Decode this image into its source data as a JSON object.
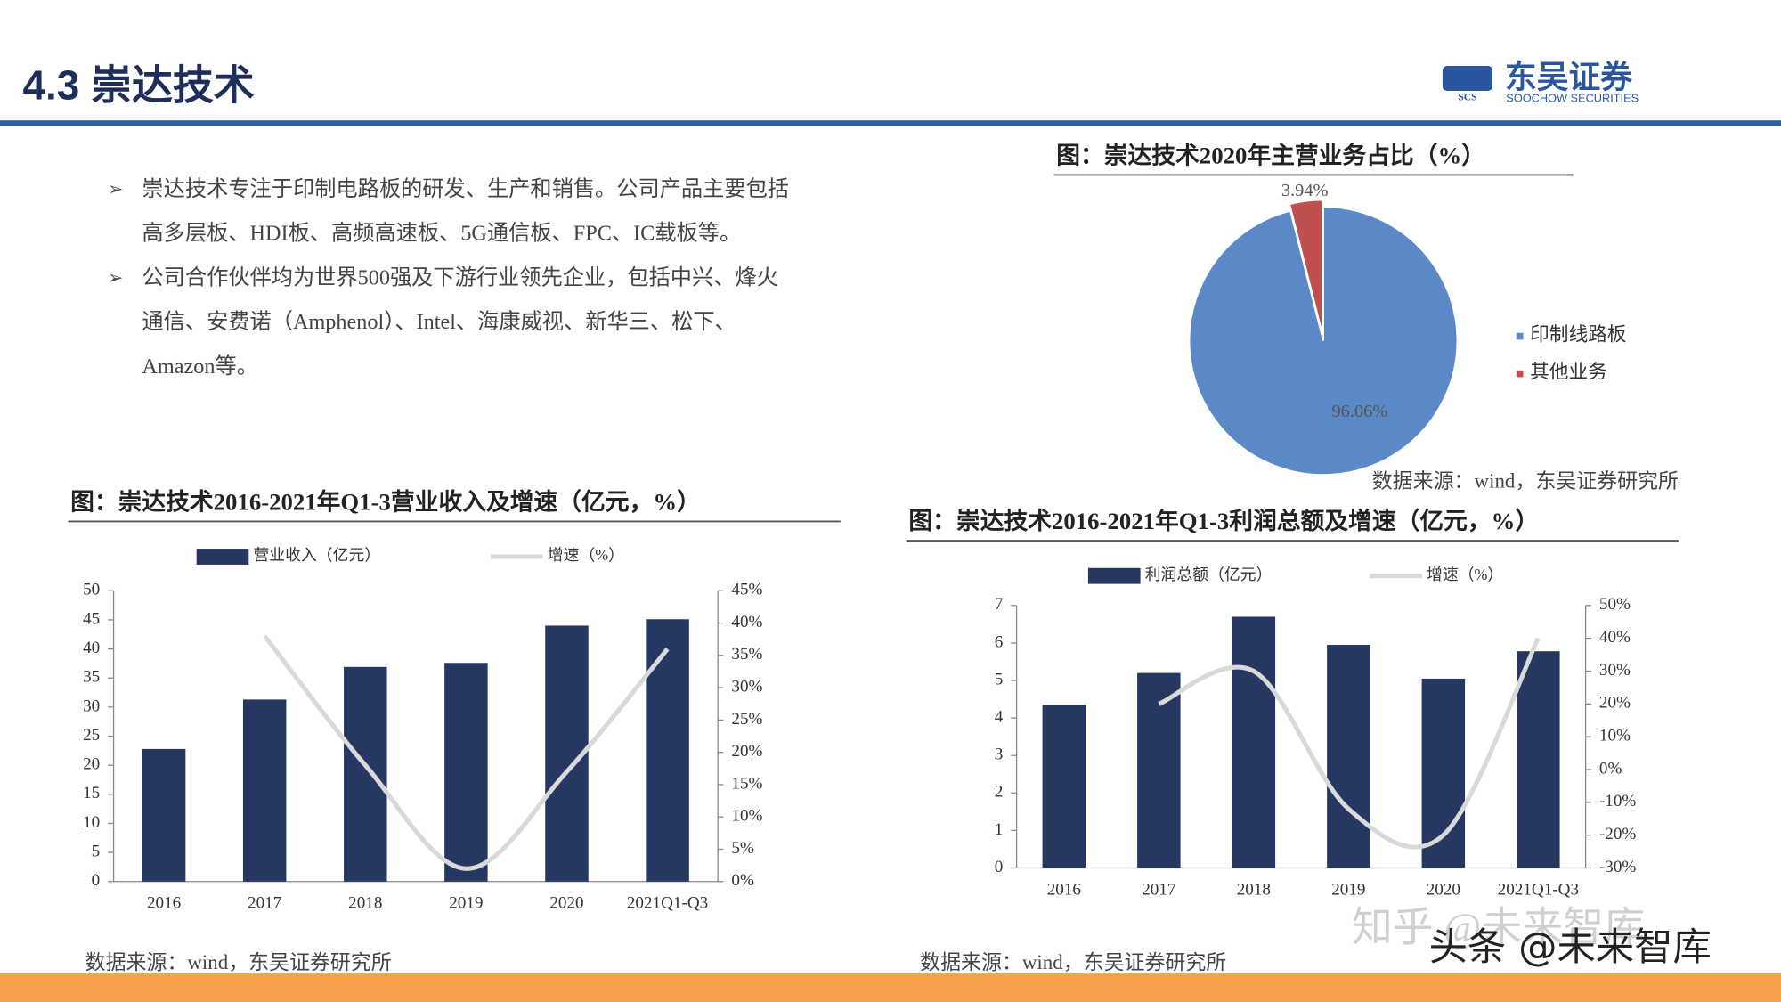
{
  "header": {
    "title": "4.3 崇达技术",
    "logo": "东吴证券",
    "logo_sub": "SOOCHOW SECURITIES",
    "logo_mark": "SCS"
  },
  "bullets": [
    [
      "崇达技术专注于印制电路板的研发、生产和销售。公司产品主要包括",
      "高多层板、HDI板、高频高速板、5G通信板、FPC、IC载板等。"
    ],
    [
      "公司合作伙伴均为世界500强及下游行业领先企业，包括中兴、烽火",
      "通信、安费诺（Amphenol）、Intel、海康威视、新华三、松下、",
      "Amazon等。"
    ]
  ],
  "watermarks": [
    "知乎 @未来智库",
    "头条 @未来智库"
  ],
  "chart_data": [
    {
      "type": "bar-line",
      "title": "图：崇达技术2016-2021年Q1-3营业收入及增速（亿元，%）",
      "source": "数据来源：wind，东吴证券研究所",
      "categories": [
        "2016",
        "2017",
        "2018",
        "2019",
        "2020",
        "2021Q1-Q3"
      ],
      "series": [
        {
          "name": "营业收入（亿元）",
          "color": "#263761",
          "values": [
            22.8,
            31.3,
            36.9,
            37.6,
            44.0,
            45.1
          ]
        },
        {
          "name": "增速（%）",
          "color": "#d9d9d9",
          "axis": "y2",
          "values": [
            null,
            38,
            18,
            2,
            17,
            36
          ]
        }
      ],
      "ylim": [
        0,
        50
      ],
      "yticks": [
        0,
        5,
        10,
        15,
        20,
        25,
        30,
        35,
        40,
        45,
        50
      ],
      "y2lim": [
        0,
        45
      ],
      "y2ticks": [
        {
          "value": 0,
          "label": "0%"
        },
        {
          "value": 5,
          "label": "5%"
        },
        {
          "value": 10,
          "label": "10%"
        },
        {
          "value": 15,
          "label": "15%"
        },
        {
          "value": 20,
          "label": "20%"
        },
        {
          "value": 25,
          "label": "25%"
        },
        {
          "value": 30,
          "label": "30%"
        },
        {
          "value": 35,
          "label": "35%"
        },
        {
          "value": 40,
          "label": "40%"
        },
        {
          "value": 45,
          "label": "45%"
        }
      ]
    },
    {
      "type": "pie",
      "title": "图：崇达技术2020年主营业务占比（%）",
      "source": "数据来源：wind，东吴证券研究所",
      "categories": [
        "印制线路板",
        "其他业务"
      ],
      "values": [
        96.06,
        3.94
      ],
      "value_labels": [
        "96.06%",
        "3.94%"
      ],
      "colors": [
        "#5b88c6",
        "#c0504d"
      ]
    },
    {
      "type": "bar-line",
      "title": "图：崇达技术2016-2021年Q1-3利润总额及增速（亿元，%）",
      "source": "数据来源：wind，东吴证券研究所",
      "categories": [
        "2016",
        "2017",
        "2018",
        "2019",
        "2020",
        "2021Q1-Q3"
      ],
      "series": [
        {
          "name": "利润总额（亿元）",
          "color": "#263761",
          "values": [
            4.35,
            5.2,
            6.7,
            5.95,
            5.05,
            5.78
          ]
        },
        {
          "name": "增速（%）",
          "color": "#d9d9d9",
          "axis": "y2",
          "values": [
            null,
            20,
            30,
            -12,
            -20,
            40
          ]
        }
      ],
      "ylim": [
        0,
        7
      ],
      "yticks": [
        0,
        1,
        2,
        3,
        4,
        5,
        6,
        7
      ],
      "y2lim": [
        -30,
        50
      ],
      "y2ticks": [
        {
          "value": -30,
          "label": "-30%"
        },
        {
          "value": -20,
          "label": "-20%"
        },
        {
          "value": -10,
          "label": "-10%"
        },
        {
          "value": 0,
          "label": "0%"
        },
        {
          "value": 10,
          "label": "10%"
        },
        {
          "value": 20,
          "label": "20%"
        },
        {
          "value": 30,
          "label": "30%"
        },
        {
          "value": 40,
          "label": "40%"
        },
        {
          "value": 50,
          "label": "50%"
        }
      ]
    }
  ]
}
